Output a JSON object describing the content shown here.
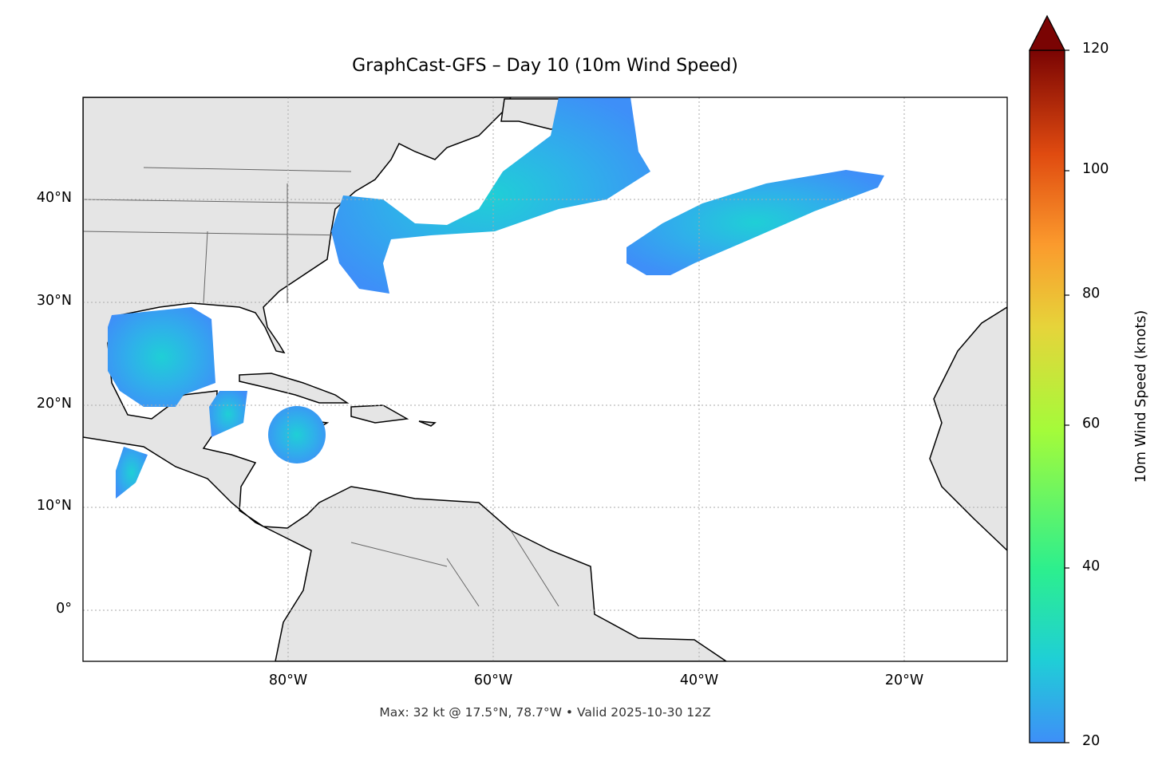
{
  "title": "GraphCast-GFS – Day 10 (10m Wind Speed)",
  "footer": "Max: 32 kt @ 17.5°N, 78.7°W • Valid 2025-10-30 12Z",
  "map": {
    "projection": "PlateCarree",
    "extent": {
      "lon": [
        -100,
        -10
      ],
      "lat": [
        -5,
        50
      ]
    },
    "gridlines": "dotted",
    "land_color": "#e5e5e5",
    "ocean_color": "#ffffff",
    "lat_ticks": [
      "40°N",
      "30°N",
      "20°N",
      "10°N",
      "0°"
    ],
    "lon_ticks": [
      "80°W",
      "60°W",
      "40°W",
      "20°W"
    ],
    "max_wind": {
      "value_kt": 32,
      "lat": 17.5,
      "lon": -78.7
    }
  },
  "colorbar": {
    "label": "10m Wind Speed (knots)",
    "ticks": [
      "120",
      "100",
      "80",
      "60",
      "40",
      "20"
    ],
    "range": [
      20,
      120
    ],
    "extend": "max",
    "colormap": "turbo",
    "colors": [
      "#3e8ff8",
      "#1fcfd6",
      "#2cef8e",
      "#a4fb3a",
      "#e6d43a",
      "#fb9a2d",
      "#e04b10",
      "#a4150a",
      "#7a0403"
    ]
  }
}
